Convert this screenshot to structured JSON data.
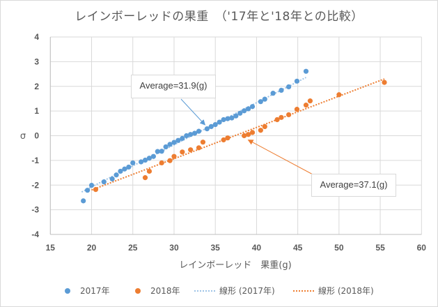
{
  "chart_data": {
    "type": "scatter",
    "title": "レインボーレッドの果重　（'17年と'18年との比較）",
    "xlabel": "レインボーレッド　果重(g)",
    "ylabel": "σ",
    "xlim": [
      15,
      60
    ],
    "ylim": [
      -4,
      4
    ],
    "x_ticks": [
      15,
      20,
      25,
      30,
      35,
      40,
      45,
      50,
      55,
      60
    ],
    "y_ticks": [
      4,
      3,
      2,
      1,
      0,
      -1,
      -2,
      -3,
      -4
    ],
    "grid": true,
    "legend_position": "bottom",
    "series": [
      {
        "name": "2017年",
        "color": "#5b9bd5",
        "points": [
          [
            19.0,
            -2.64
          ],
          [
            19.5,
            -2.21
          ],
          [
            20.0,
            -2.01
          ],
          [
            21.5,
            -1.87
          ],
          [
            22.5,
            -1.75
          ],
          [
            23.0,
            -1.59
          ],
          [
            23.5,
            -1.44
          ],
          [
            24.0,
            -1.35
          ],
          [
            24.5,
            -1.27
          ],
          [
            25.0,
            -1.1
          ],
          [
            26.0,
            -1.06
          ],
          [
            26.5,
            -0.99
          ],
          [
            27.0,
            -0.91
          ],
          [
            27.5,
            -0.84
          ],
          [
            28.0,
            -0.64
          ],
          [
            28.5,
            -0.63
          ],
          [
            29.0,
            -0.45
          ],
          [
            29.5,
            -0.35
          ],
          [
            30.0,
            -0.27
          ],
          [
            30.5,
            -0.19
          ],
          [
            31.0,
            -0.11
          ],
          [
            31.5,
            0.0
          ],
          [
            32.0,
            0.05
          ],
          [
            32.5,
            0.1
          ],
          [
            33.0,
            0.18
          ],
          [
            34.0,
            0.28
          ],
          [
            34.5,
            0.37
          ],
          [
            35.0,
            0.45
          ],
          [
            35.5,
            0.55
          ],
          [
            36.0,
            0.65
          ],
          [
            36.5,
            0.69
          ],
          [
            37.0,
            0.72
          ],
          [
            37.5,
            0.8
          ],
          [
            38.0,
            0.91
          ],
          [
            38.5,
            1.01
          ],
          [
            39.0,
            1.09
          ],
          [
            39.5,
            1.18
          ],
          [
            40.5,
            1.38
          ],
          [
            41.0,
            1.48
          ],
          [
            42.0,
            1.72
          ],
          [
            43.0,
            1.84
          ],
          [
            43.9,
            1.98
          ],
          [
            44.9,
            2.21
          ],
          [
            46.0,
            2.61
          ]
        ]
      },
      {
        "name": "2018年",
        "color": "#ed7d31",
        "points": [
          [
            20.5,
            -2.18
          ],
          [
            26.5,
            -1.7
          ],
          [
            27.0,
            -1.44
          ],
          [
            28.5,
            -1.1
          ],
          [
            29.5,
            -1.01
          ],
          [
            30.0,
            -0.84
          ],
          [
            31.0,
            -0.66
          ],
          [
            32.0,
            -0.57
          ],
          [
            33.0,
            -0.49
          ],
          [
            33.5,
            -0.26
          ],
          [
            36.0,
            -0.17
          ],
          [
            36.5,
            -0.09
          ],
          [
            38.5,
            0.0
          ],
          [
            39.0,
            0.05
          ],
          [
            39.5,
            0.13
          ],
          [
            40.5,
            0.22
          ],
          [
            41.0,
            0.37
          ],
          [
            42.5,
            0.65
          ],
          [
            43.0,
            0.74
          ],
          [
            43.9,
            0.85
          ],
          [
            44.9,
            1.07
          ],
          [
            46.0,
            1.24
          ],
          [
            46.5,
            1.41
          ],
          [
            50.0,
            1.66
          ],
          [
            55.5,
            2.16
          ]
        ]
      }
    ],
    "trendlines": [
      {
        "name": "線形 (2017年)",
        "color": "#5b9bd5",
        "from": [
          18.8,
          -2.28
        ],
        "to": [
          46.0,
          2.36
        ]
      },
      {
        "name": "線形 (2018年)",
        "color": "#ed7d31",
        "from": [
          20.0,
          -2.2
        ],
        "to": [
          55.5,
          2.3
        ]
      }
    ],
    "annotations": [
      {
        "text": "Average=31.9(g)",
        "color": "#5b9bd5",
        "arrow_to": [
          34.0,
          0.3
        ]
      },
      {
        "text": "Average=37.1(g)",
        "color": "#ed7d31",
        "arrow_to": [
          39.5,
          -0.2
        ]
      }
    ]
  },
  "legend": {
    "items": [
      {
        "label": "2017年",
        "kind": "marker",
        "color": "#5b9bd5"
      },
      {
        "label": "2018年",
        "kind": "marker",
        "color": "#ed7d31"
      },
      {
        "label": "線形 (2017年)",
        "kind": "line",
        "color": "#5b9bd5"
      },
      {
        "label": "線形 (2018年)",
        "kind": "line",
        "color": "#ed7d31"
      }
    ]
  }
}
